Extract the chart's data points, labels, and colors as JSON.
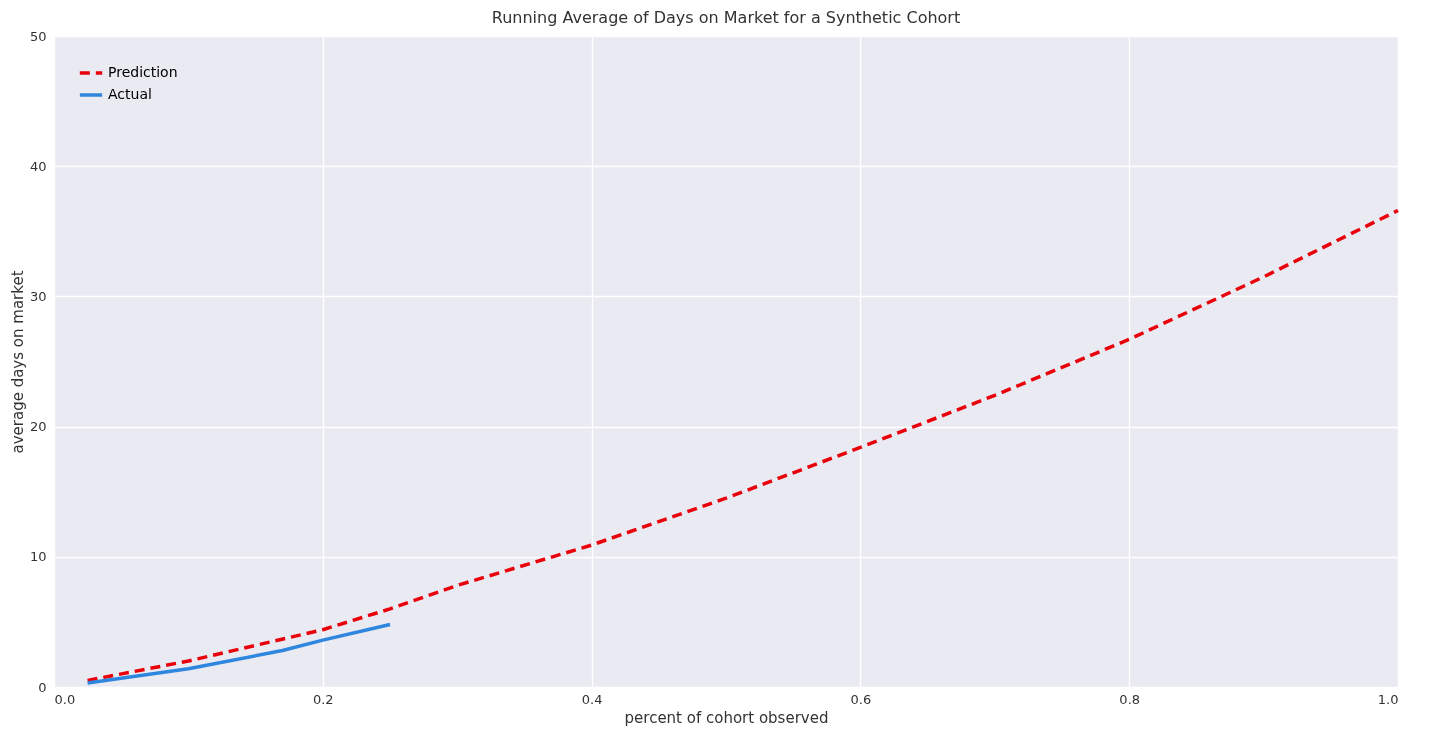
{
  "chart_data": {
    "type": "line",
    "title": "Running Average of Days on Market for a Synthetic Cohort",
    "xlabel": "percent of cohort observed",
    "ylabel": "average days on market",
    "xlim": [
      0.0,
      1.0
    ],
    "xticks": [
      {
        "value": 0,
        "label": "0.0"
      },
      0.2,
      0.4,
      0.6,
      0.8,
      {
        "value": 1,
        "label": "1.0"
      }
    ],
    "ylim": [
      0,
      50
    ],
    "yticks": [
      0,
      10,
      20,
      30,
      40,
      50
    ],
    "grid": true,
    "legend": "top left",
    "series": [
      {
        "name": "Prediction",
        "color": "#e8000b",
        "line_style": "dashed",
        "x": [
          0.025,
          0.1,
          0.2,
          0.25,
          0.3,
          0.4,
          0.5,
          0.6,
          0.7,
          0.8,
          0.9,
          1.0
        ],
        "values": [
          0.5,
          2.0,
          4.4,
          6.0,
          7.8,
          10.9,
          14.5,
          18.4,
          22.4,
          26.7,
          31.5,
          36.6
        ]
      },
      {
        "name": "Actual",
        "color": "#2e86de",
        "line_style": "solid",
        "x": [
          0.025,
          0.1,
          0.17,
          0.2,
          0.25
        ],
        "values": [
          0.3,
          1.4,
          2.8,
          3.6,
          4.8
        ]
      }
    ]
  }
}
